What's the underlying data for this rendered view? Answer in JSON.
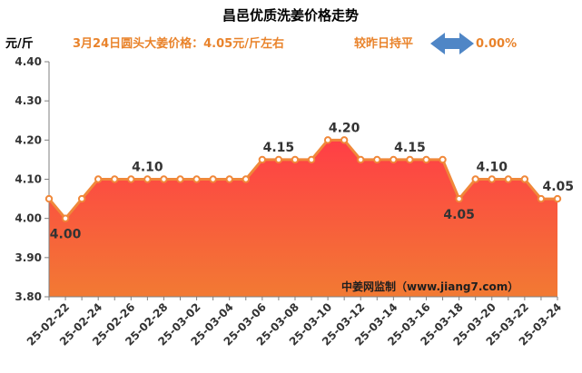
{
  "chart_data": {
    "type": "area",
    "title": "昌邑优质洗姜价格走势",
    "unit_label": "元/斤",
    "info_price": "3月24日圆头大姜价格：4.05元/斤左右",
    "info_change": "较昨日持平",
    "info_pct": "0.00%",
    "source": "中姜网监制（www.jiang7.com）",
    "ylim": [
      3.8,
      4.4
    ],
    "yticks": [
      "3.80",
      "3.90",
      "4.00",
      "4.10",
      "4.20",
      "4.30",
      "4.40"
    ],
    "grid": false,
    "x": [
      "25-02-21",
      "25-02-22",
      "25-02-23",
      "25-02-24",
      "25-02-25",
      "25-02-26",
      "25-02-27",
      "25-02-28",
      "25-03-01",
      "25-03-02",
      "25-03-03",
      "25-03-04",
      "25-03-05",
      "25-03-06",
      "25-03-07",
      "25-03-08",
      "25-03-09",
      "25-03-10",
      "25-03-11",
      "25-03-12",
      "25-03-13",
      "25-03-14",
      "25-03-15",
      "25-03-16",
      "25-03-17",
      "25-03-18",
      "25-03-19",
      "25-03-20",
      "25-03-21",
      "25-03-22",
      "25-03-23",
      "25-03-24"
    ],
    "xtick_labels": [
      "25-02-22",
      "25-02-24",
      "25-02-26",
      "25-02-28",
      "25-03-02",
      "25-03-04",
      "25-03-06",
      "25-03-08",
      "25-03-10",
      "25-03-12",
      "25-03-14",
      "25-03-16",
      "25-03-18",
      "25-03-20",
      "25-03-22",
      "25-03-24"
    ],
    "values": [
      4.05,
      4.0,
      4.05,
      4.1,
      4.1,
      4.1,
      4.1,
      4.1,
      4.1,
      4.1,
      4.1,
      4.1,
      4.1,
      4.15,
      4.15,
      4.15,
      4.15,
      4.2,
      4.2,
      4.15,
      4.15,
      4.15,
      4.15,
      4.15,
      4.15,
      4.05,
      4.1,
      4.1,
      4.1,
      4.1,
      4.05,
      4.05
    ],
    "data_labels": [
      {
        "index": 1,
        "text": "4.00"
      },
      {
        "index": 6,
        "text": "4.10"
      },
      {
        "index": 14,
        "text": "4.15"
      },
      {
        "index": 18,
        "text": "4.20"
      },
      {
        "index": 22,
        "text": "4.15"
      },
      {
        "index": 25,
        "text": "4.05"
      },
      {
        "index": 27,
        "text": "4.10"
      },
      {
        "index": 31,
        "text": "4.05"
      }
    ],
    "colors": {
      "line": "#f0883a",
      "marker": "#f0883a",
      "fill_top": "#ff3e46",
      "fill_bottom": "#f27a33",
      "info_text": "#e9832b",
      "arrow": "#4f86c6"
    }
  }
}
